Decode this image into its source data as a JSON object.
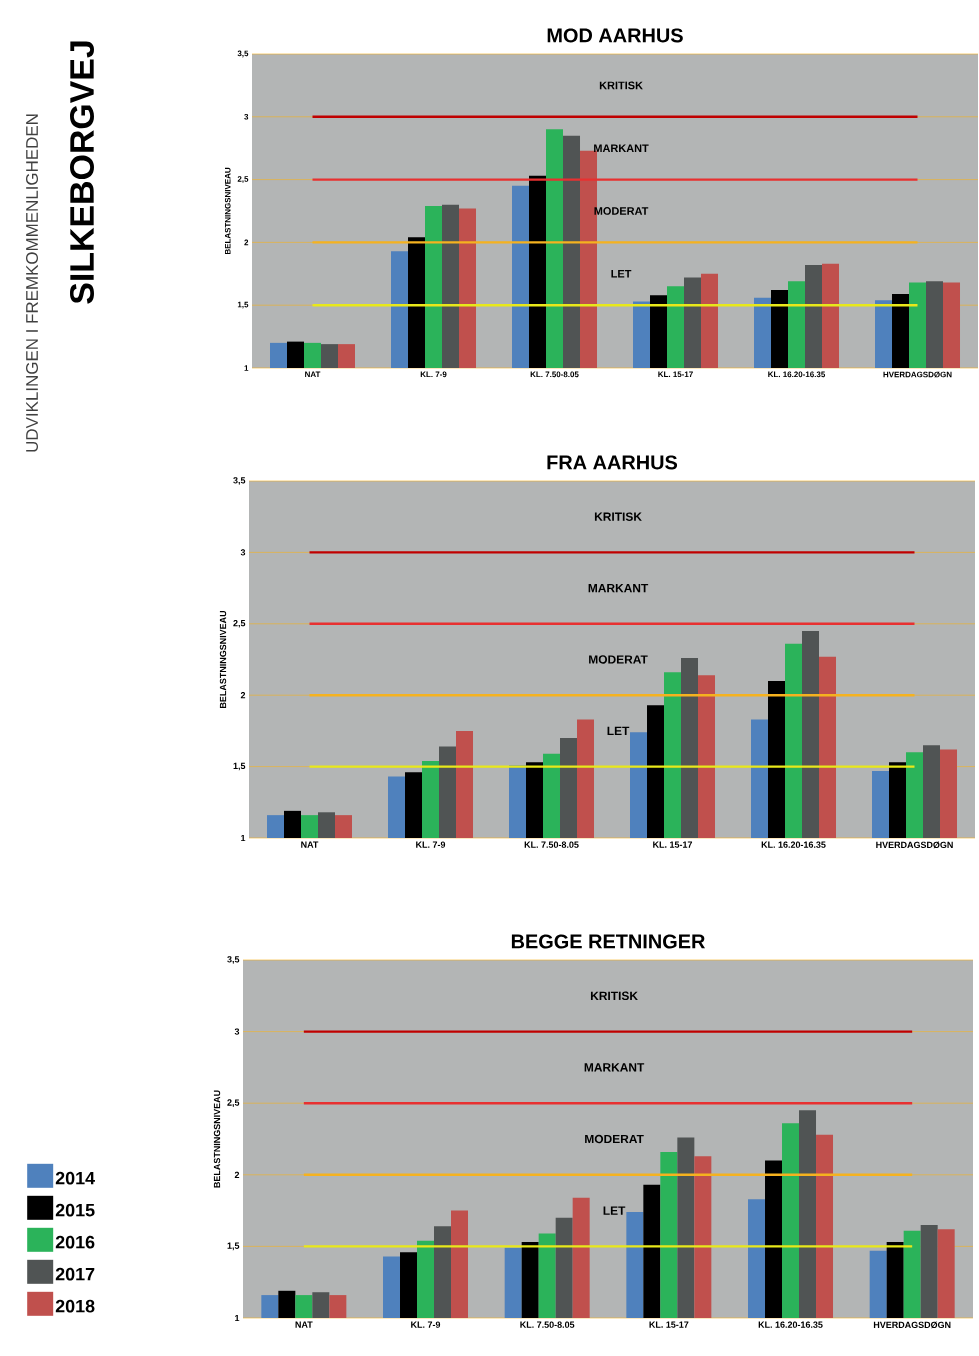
{
  "chart_data": [
    {
      "type": "bar",
      "title": "MOD AARHUS",
      "ylabel": "BELASTNINGSNIVEAU",
      "annotations": [
        "UDVIKLINGEN I FREMKOMMENLIGHEDEN",
        "SILKEBORGVEJ"
      ],
      "categories": [
        "NAT",
        "KL. 7-9",
        "KL. 7.50-8.05",
        "KL. 15-17",
        "KL. 16.20-16.35",
        "HVERDAGSDØGN"
      ],
      "series": [
        {
          "color": "#4f81bd",
          "values": [
            1.2,
            1.93,
            2.45,
            1.53,
            1.56,
            1.54
          ]
        },
        {
          "color": "#000000",
          "values": [
            1.21,
            2.04,
            2.53,
            1.58,
            1.62,
            1.59
          ]
        },
        {
          "color": "#2bb35a",
          "values": [
            1.2,
            2.29,
            2.9,
            1.65,
            1.69,
            1.68
          ]
        },
        {
          "color": "#505454",
          "values": [
            1.19,
            2.3,
            2.85,
            1.72,
            1.82,
            1.69
          ]
        },
        {
          "color": "#c0504d",
          "values": [
            1.19,
            2.27,
            2.73,
            1.75,
            1.83,
            1.68
          ]
        }
      ],
      "ylim": [
        1,
        3.5
      ],
      "yticks": [
        1,
        {
          "value": 1.5,
          "label": "1,5"
        },
        2,
        {
          "value": 2.5,
          "label": "2,5"
        },
        3,
        {
          "value": 3.5,
          "label": "3,5"
        }
      ],
      "grid": "y",
      "ref_lines": [
        {
          "axis": "y",
          "value": 3,
          "color": "#c00000",
          "label": "KRITISK"
        },
        {
          "axis": "y",
          "value": 2.5,
          "color": "#e83030",
          "label": "MARKANT"
        },
        {
          "axis": "y",
          "value": 2,
          "color": "#f5b21f",
          "label": "MODERAT"
        },
        {
          "axis": "y",
          "value": 1.5,
          "color": "#e8e81a",
          "label": "LET"
        }
      ]
    },
    {
      "type": "bar",
      "title": "FRA AARHUS",
      "ylabel": "BELASTNINGSNIVEAU",
      "categories": [
        "NAT",
        "KL. 7-9",
        "KL. 7.50-8.05",
        "KL. 15-17",
        "KL. 16.20-16.35",
        "HVERDAGSDØGN"
      ],
      "series": [
        {
          "color": "#4f81bd",
          "values": [
            1.16,
            1.43,
            1.51,
            1.74,
            1.83,
            1.47
          ]
        },
        {
          "color": "#000000",
          "values": [
            1.19,
            1.46,
            1.53,
            1.93,
            2.1,
            1.53
          ]
        },
        {
          "color": "#2bb35a",
          "values": [
            1.16,
            1.54,
            1.59,
            2.16,
            2.36,
            1.6
          ]
        },
        {
          "color": "#505454",
          "values": [
            1.18,
            1.64,
            1.7,
            2.26,
            2.45,
            1.65
          ]
        },
        {
          "color": "#c0504d",
          "values": [
            1.16,
            1.75,
            1.83,
            2.14,
            2.27,
            1.62
          ]
        }
      ],
      "ylim": [
        1,
        3.5
      ],
      "yticks": [
        1,
        {
          "value": 1.5,
          "label": "1,5"
        },
        2,
        {
          "value": 2.5,
          "label": "2,5"
        },
        3,
        {
          "value": 3.5,
          "label": "3,5"
        }
      ],
      "grid": "y",
      "ref_lines": [
        {
          "axis": "y",
          "value": 3,
          "color": "#c00000",
          "label": "KRITISK"
        },
        {
          "axis": "y",
          "value": 2.5,
          "color": "#e83030",
          "label": "MARKANT"
        },
        {
          "axis": "y",
          "value": 2,
          "color": "#f5b21f",
          "label": "MODERAT"
        },
        {
          "axis": "y",
          "value": 1.5,
          "color": "#e8e81a",
          "label": "LET"
        }
      ]
    },
    {
      "type": "bar",
      "title": "BEGGE RETNINGER",
      "ylabel": "BELASTNINGSNIVEAU",
      "categories": [
        "NAT",
        "KL. 7-9",
        "KL. 7.50-8.05",
        "KL. 15-17",
        "KL. 16.20-16.35",
        "HVERDAGSDØGN"
      ],
      "series": [
        {
          "name": "2014",
          "color": "#4f81bd",
          "values": [
            1.16,
            1.43,
            1.49,
            1.74,
            1.83,
            1.47
          ]
        },
        {
          "name": "2015",
          "color": "#000000",
          "values": [
            1.19,
            1.46,
            1.53,
            1.93,
            2.1,
            1.53
          ]
        },
        {
          "name": "2016",
          "color": "#2bb35a",
          "values": [
            1.16,
            1.54,
            1.59,
            2.16,
            2.36,
            1.61
          ]
        },
        {
          "name": "2017",
          "color": "#505454",
          "values": [
            1.18,
            1.64,
            1.7,
            2.26,
            2.45,
            1.65
          ]
        },
        {
          "name": "2018",
          "color": "#c0504d",
          "values": [
            1.16,
            1.75,
            1.84,
            2.13,
            2.28,
            1.62
          ]
        }
      ],
      "ylim": [
        1,
        3.5
      ],
      "yticks": [
        1,
        {
          "value": 1.5,
          "label": "1,5"
        },
        2,
        {
          "value": 2.5,
          "label": "2,5"
        },
        3,
        {
          "value": 3.5,
          "label": "3,5"
        }
      ],
      "grid": "y",
      "legend": "left",
      "ref_lines": [
        {
          "axis": "y",
          "value": 3,
          "color": "#c00000",
          "label": "KRITISK"
        },
        {
          "axis": "y",
          "value": 2.5,
          "color": "#e83030",
          "label": "MARKANT"
        },
        {
          "axis": "y",
          "value": 2,
          "color": "#f5b21f",
          "label": "MODERAT"
        },
        {
          "axis": "y",
          "value": 1.5,
          "color": "#e8e81a",
          "label": "LET"
        }
      ]
    }
  ]
}
